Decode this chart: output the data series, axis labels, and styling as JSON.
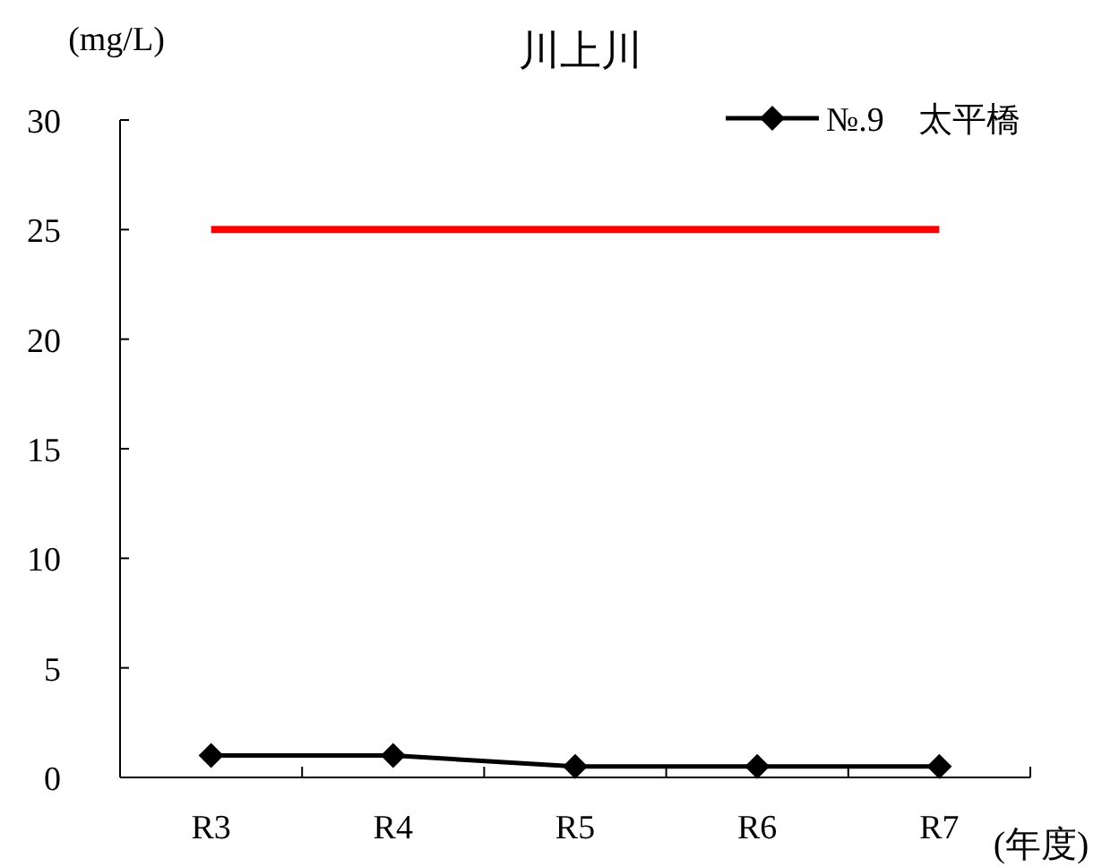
{
  "chart_data": {
    "type": "line",
    "title": "川上川",
    "ylabel": "(mg/L)",
    "xlabel": "(年度)",
    "categories": [
      "R3",
      "R4",
      "R5",
      "R6",
      "R7"
    ],
    "series": [
      {
        "name": "№.9　太平橋",
        "color": "#000000",
        "values": [
          1,
          1,
          0.5,
          0.5,
          0.5
        ],
        "marker": "diamond"
      },
      {
        "color": "#ff0000",
        "values": [
          25,
          25,
          25,
          25,
          25
        ],
        "marker": "none"
      }
    ],
    "ylim": [
      0,
      30
    ],
    "yticks": [
      0,
      5,
      10,
      15,
      20,
      25,
      30
    ],
    "grid": false,
    "legend": "top right"
  }
}
